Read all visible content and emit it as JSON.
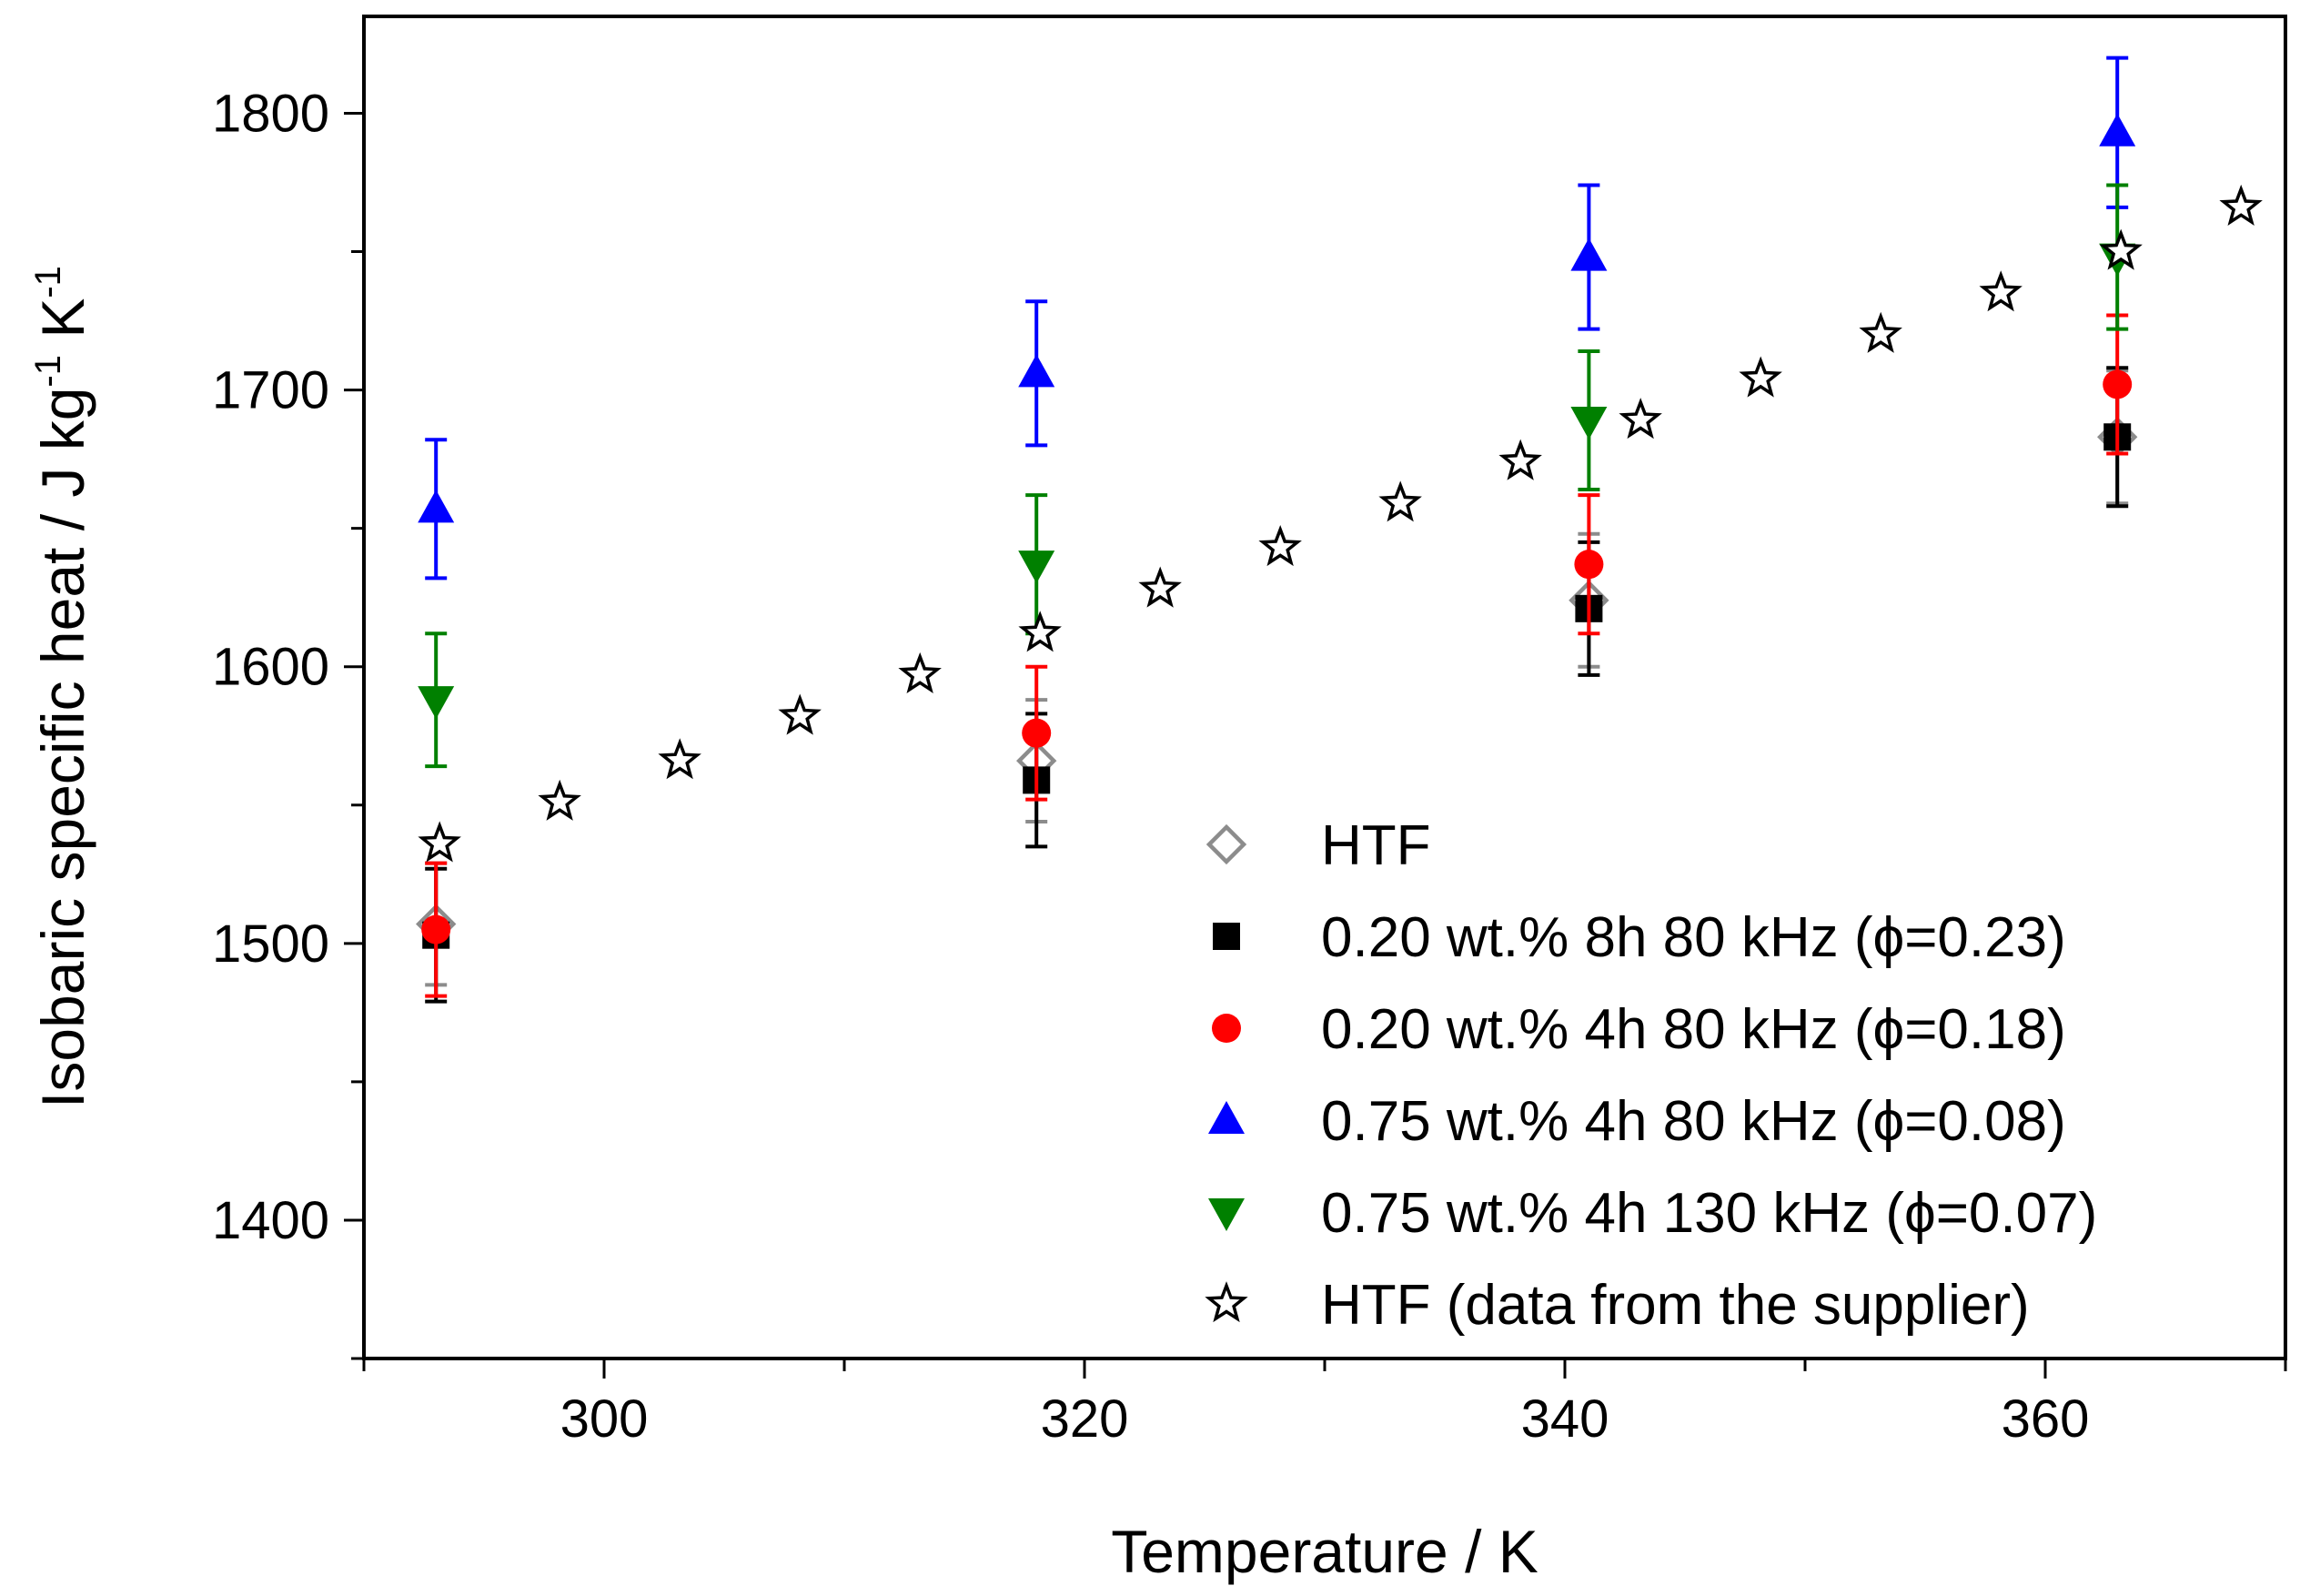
{
  "chart_data": {
    "type": "scatter",
    "title": "",
    "xlabel": "Temperature / K",
    "ylabel": {
      "main": "Isobaric specific heat / J kg",
      "sup1": "-1",
      "mid": " K",
      "sup2": "-1"
    },
    "xlim": [
      290,
      370
    ],
    "ylim": [
      1350,
      1835
    ],
    "x_ticks": [
      300,
      320,
      340,
      360
    ],
    "y_ticks": [
      1400,
      1500,
      1600,
      1700,
      1800
    ],
    "x_minor_step": 10,
    "y_minor_step": 50,
    "legend_position": "bottom-right",
    "series": [
      {
        "name": "HTF",
        "marker": "diamond-open",
        "color": "#8c8c8c",
        "points": [
          {
            "x": 293,
            "y": 1507,
            "err": 22
          },
          {
            "x": 318,
            "y": 1566,
            "err": 22
          },
          {
            "x": 341,
            "y": 1624,
            "err": 24
          },
          {
            "x": 363,
            "y": 1683,
            "err": 24
          }
        ]
      },
      {
        "name": "0.20 wt.% 8h 80 kHz (ϕ=0.23)",
        "marker": "square",
        "color": "#000000",
        "points": [
          {
            "x": 293,
            "y": 1503,
            "err": 24
          },
          {
            "x": 318,
            "y": 1559,
            "err": 24
          },
          {
            "x": 341,
            "y": 1621,
            "err": 24
          },
          {
            "x": 363,
            "y": 1683,
            "err": 25
          }
        ]
      },
      {
        "name": "0.20 wt.% 4h 80 kHz (ϕ=0.18)",
        "marker": "circle",
        "color": "#ff0000",
        "points": [
          {
            "x": 293,
            "y": 1505,
            "err": 24
          },
          {
            "x": 318,
            "y": 1576,
            "err": 24
          },
          {
            "x": 341,
            "y": 1637,
            "err": 25
          },
          {
            "x": 363,
            "y": 1702,
            "err": 25
          }
        ]
      },
      {
        "name": "0.75 wt.% 4h 80 kHz (ϕ=0.08)",
        "marker": "triangle-up",
        "color": "#0000ff",
        "points": [
          {
            "x": 293,
            "y": 1657,
            "err": 25
          },
          {
            "x": 318,
            "y": 1706,
            "err": 26
          },
          {
            "x": 341,
            "y": 1748,
            "err": 26
          },
          {
            "x": 363,
            "y": 1793,
            "err": 27
          }
        ]
      },
      {
        "name": "0.75 wt.% 4h 130 kHz (ϕ=0.07)",
        "marker": "triangle-down",
        "color": "#008000",
        "points": [
          {
            "x": 293,
            "y": 1588,
            "err": 24
          },
          {
            "x": 318,
            "y": 1637,
            "err": 25
          },
          {
            "x": 341,
            "y": 1689,
            "err": 25
          },
          {
            "x": 363,
            "y": 1748,
            "err": 26
          }
        ]
      },
      {
        "name": "HTF (data from the supplier)",
        "marker": "star-open",
        "color": "#000000",
        "points": [
          {
            "x": 293.15,
            "y": 1536
          },
          {
            "x": 298.15,
            "y": 1551
          },
          {
            "x": 303.15,
            "y": 1566
          },
          {
            "x": 308.15,
            "y": 1582
          },
          {
            "x": 313.15,
            "y": 1597
          },
          {
            "x": 318.15,
            "y": 1612
          },
          {
            "x": 323.15,
            "y": 1628
          },
          {
            "x": 328.15,
            "y": 1643
          },
          {
            "x": 333.15,
            "y": 1659
          },
          {
            "x": 338.15,
            "y": 1674
          },
          {
            "x": 343.15,
            "y": 1689
          },
          {
            "x": 348.15,
            "y": 1704
          },
          {
            "x": 353.15,
            "y": 1720
          },
          {
            "x": 358.15,
            "y": 1735
          },
          {
            "x": 363.15,
            "y": 1750
          },
          {
            "x": 368.15,
            "y": 1766
          }
        ]
      }
    ]
  }
}
